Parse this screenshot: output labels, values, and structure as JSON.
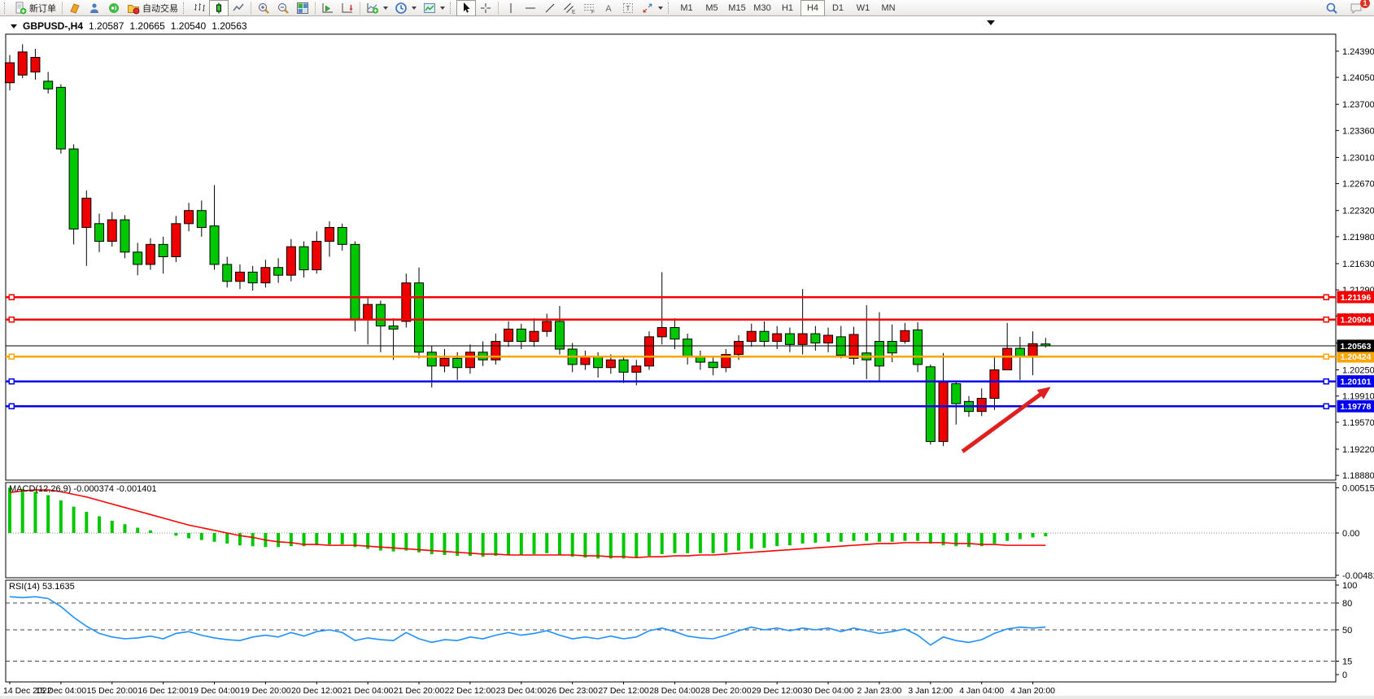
{
  "toolbar": {
    "new_order_label": "新订单",
    "auto_trading_label": "自动交易",
    "timeframes": [
      "M1",
      "M5",
      "M15",
      "M30",
      "H1",
      "H4",
      "D1",
      "W1",
      "MN"
    ],
    "active_timeframe": "H4",
    "notification_count": "1"
  },
  "header": {
    "symbol": "GBPUSD-,H4",
    "open": "1.20587",
    "high": "1.20665",
    "low": "1.20540",
    "close": "1.20563"
  },
  "chart_data": [
    {
      "type": "candlestick",
      "title": "GBPUSD-,H4",
      "ylim": [
        1.1886,
        1.2456
      ],
      "up_color": "#ee0000",
      "down_color": "#00c800",
      "wick_color": "#000000",
      "price_ticks": [
        "1.24390",
        "1.24050",
        "1.23700",
        "1.23360",
        "1.23010",
        "1.22670",
        "1.22320",
        "1.21980",
        "1.21630",
        "1.21290",
        "1.20950",
        "1.20600",
        "1.20250",
        "1.19910",
        "1.19570",
        "1.19220",
        "1.18880"
      ],
      "time_labels": [
        "14 Dec 2022",
        "15 Dec 04:00",
        "15 Dec 20:00",
        "16 Dec 12:00",
        "19 Dec 04:00",
        "19 Dec 20:00",
        "20 Dec 12:00",
        "21 Dec 04:00",
        "21 Dec 20:00",
        "22 Dec 12:00",
        "23 Dec 04:00",
        "26 Dec 23:00",
        "27 Dec 12:00",
        "28 Dec 04:00",
        "28 Dec 20:00",
        "29 Dec 12:00",
        "30 Dec 04:00",
        "2 Jan 23:00",
        "3 Jan 12:00",
        "4 Jan 04:00",
        "4 Jan 20:00"
      ],
      "hlines": [
        {
          "price": 1.21196,
          "label": "1.21196",
          "color": "#f40000"
        },
        {
          "price": 1.20904,
          "label": "1.20904",
          "color": "#f40000"
        },
        {
          "price": 1.20424,
          "label": "1.20424",
          "color": "#ffa500"
        },
        {
          "price": 1.20101,
          "label": "1.20101",
          "color": "#0000ee"
        },
        {
          "price": 1.19778,
          "label": "1.19778",
          "color": "#0000ee"
        }
      ],
      "current_price": {
        "price": 1.20563,
        "label": "1.20563",
        "color": "#000000"
      },
      "arrow": {
        "x1_index": 74.5,
        "y1_price": 1.1919,
        "x2_index": 81.4,
        "y2_price": 1.2003,
        "color": "#e01f1f"
      },
      "ohlc": [
        [
          1.2398,
          1.2434,
          1.2388,
          1.2424
        ],
        [
          1.2408,
          1.2448,
          1.2404,
          1.2438
        ],
        [
          1.2412,
          1.2442,
          1.2402,
          1.2431
        ],
        [
          1.24,
          1.2412,
          1.2384,
          1.239
        ],
        [
          1.2392,
          1.2396,
          1.2306,
          1.2312
        ],
        [
          1.2312,
          1.2318,
          1.2188,
          1.2208
        ],
        [
          1.221,
          1.2258,
          1.216,
          1.2248
        ],
        [
          1.2215,
          1.2228,
          1.2178,
          1.2192
        ],
        [
          1.2192,
          1.223,
          1.2185,
          1.222
        ],
        [
          1.222,
          1.2226,
          1.217,
          1.2178
        ],
        [
          1.2178,
          1.219,
          1.2148,
          1.2162
        ],
        [
          1.2162,
          1.2196,
          1.2155,
          1.2188
        ],
        [
          1.2188,
          1.2198,
          1.215,
          1.2172
        ],
        [
          1.2172,
          1.2225,
          1.2165,
          1.2215
        ],
        [
          1.2215,
          1.2242,
          1.2205,
          1.2232
        ],
        [
          1.2232,
          1.2245,
          1.2198,
          1.221
        ],
        [
          1.2212,
          1.2265,
          1.2155,
          1.2162
        ],
        [
          1.2162,
          1.2172,
          1.2132,
          1.214
        ],
        [
          1.214,
          1.2162,
          1.213,
          1.2152
        ],
        [
          1.2152,
          1.216,
          1.2128,
          1.2138
        ],
        [
          1.2138,
          1.2168,
          1.2132,
          1.2158
        ],
        [
          1.2158,
          1.217,
          1.2138,
          1.2148
        ],
        [
          1.2148,
          1.2195,
          1.214,
          1.2185
        ],
        [
          1.2185,
          1.2192,
          1.2145,
          1.2155
        ],
        [
          1.2155,
          1.2205,
          1.215,
          1.2192
        ],
        [
          1.2192,
          1.2218,
          1.2172,
          1.221
        ],
        [
          1.221,
          1.2215,
          1.218,
          1.2188
        ],
        [
          1.2188,
          1.2192,
          1.2075,
          1.209
        ],
        [
          1.209,
          1.2118,
          1.2058,
          1.211
        ],
        [
          1.211,
          1.2115,
          1.2048,
          1.2082
        ],
        [
          1.2082,
          1.2092,
          1.2038,
          1.2078
        ],
        [
          1.2088,
          1.215,
          1.208,
          1.2138
        ],
        [
          1.2138,
          1.2158,
          1.204,
          1.2048
        ],
        [
          1.2048,
          1.2056,
          1.2002,
          1.203
        ],
        [
          1.203,
          1.2052,
          1.2022,
          1.204
        ],
        [
          1.204,
          1.2048,
          1.2012,
          1.2028
        ],
        [
          1.2028,
          1.2058,
          1.202,
          1.2048
        ],
        [
          1.2048,
          1.2062,
          1.203,
          1.2038
        ],
        [
          1.2038,
          1.2072,
          1.2032,
          1.2062
        ],
        [
          1.2062,
          1.2088,
          1.2055,
          1.2078
        ],
        [
          1.2078,
          1.2085,
          1.2052,
          1.2062
        ],
        [
          1.2062,
          1.2092,
          1.2055,
          1.2075
        ],
        [
          1.2075,
          1.2098,
          1.2068,
          1.2088
        ],
        [
          1.2088,
          1.2108,
          1.2045,
          1.2052
        ],
        [
          1.2052,
          1.206,
          1.2022,
          1.2032
        ],
        [
          1.2032,
          1.205,
          1.2025,
          1.2042
        ],
        [
          1.2042,
          1.2048,
          1.2015,
          1.2028
        ],
        [
          1.2028,
          1.2045,
          1.202,
          1.2038
        ],
        [
          1.2038,
          1.2042,
          1.2008,
          1.2022
        ],
        [
          1.2022,
          1.2038,
          1.2005,
          1.203
        ],
        [
          1.203,
          1.2075,
          1.2025,
          1.2068
        ],
        [
          1.2068,
          1.2152,
          1.2058,
          1.208
        ],
        [
          1.208,
          1.2092,
          1.2052,
          1.2065
        ],
        [
          1.2065,
          1.2072,
          1.2032,
          1.2042
        ],
        [
          1.2042,
          1.205,
          1.2025,
          1.2035
        ],
        [
          1.2035,
          1.2042,
          1.2018,
          1.2028
        ],
        [
          1.2028,
          1.2052,
          1.2022,
          1.2045
        ],
        [
          1.2045,
          1.207,
          1.2038,
          1.2062
        ],
        [
          1.2062,
          1.2085,
          1.2055,
          1.2075
        ],
        [
          1.2075,
          1.2088,
          1.2055,
          1.2062
        ],
        [
          1.2062,
          1.2082,
          1.2052,
          1.2072
        ],
        [
          1.2072,
          1.208,
          1.2048,
          1.2058
        ],
        [
          1.2058,
          1.213,
          1.2045,
          1.2072
        ],
        [
          1.2072,
          1.2082,
          1.205,
          1.206
        ],
        [
          1.206,
          1.208,
          1.2048,
          1.207
        ],
        [
          1.2068,
          1.2082,
          1.204,
          1.2044
        ],
        [
          1.204,
          1.2081,
          1.2032,
          1.2071
        ],
        [
          1.2047,
          1.2109,
          1.2013,
          1.2038
        ],
        [
          1.2062,
          1.21,
          1.2011,
          1.203
        ],
        [
          1.2062,
          1.2084,
          1.2035,
          1.2047
        ],
        [
          1.2062,
          1.2086,
          1.2059,
          1.2076
        ],
        [
          1.2077,
          1.2087,
          1.2022,
          1.2032
        ],
        [
          1.2029,
          1.2032,
          1.1928,
          1.1932
        ],
        [
          1.1932,
          1.2047,
          1.1926,
          1.2009
        ],
        [
          1.2007,
          1.201,
          1.1954,
          1.1981
        ],
        [
          1.1984,
          1.1991,
          1.1964,
          1.1971
        ],
        [
          1.1971,
          1.2001,
          1.1965,
          1.1988
        ],
        [
          1.1988,
          1.2041,
          1.1973,
          1.2025
        ],
        [
          1.2025,
          1.2086,
          1.2025,
          1.2053
        ],
        [
          1.2053,
          1.2068,
          1.2012,
          1.2043
        ],
        [
          1.2043,
          1.2075,
          1.2018,
          1.2059
        ],
        [
          1.20587,
          1.20665,
          1.2054,
          1.20563
        ]
      ]
    },
    {
      "type": "bar",
      "title": "MACD(12,26,9)",
      "current_values_text": "-0.000374 -0.001401",
      "bar_color": "#00c800",
      "signal_color": "#ff0000",
      "axis_ticks": [
        0.00515,
        0,
        -0.004811
      ],
      "axis_tick_labels": [
        "0.00515",
        "0.00",
        "-0.004811"
      ],
      "main": [
        0.00515,
        0.005,
        0.0047,
        0.0043,
        0.0037,
        0.003,
        0.0024,
        0.0019,
        0.0014,
        0.001,
        0.0006,
        0.0003,
        0,
        -0.0003,
        -0.0006,
        -0.0008,
        -0.001,
        -0.0012,
        -0.0014,
        -0.0015,
        -0.0016,
        -0.0016,
        -0.0015,
        -0.0015,
        -0.0014,
        -0.0013,
        -0.0013,
        -0.0016,
        -0.0018,
        -0.002,
        -0.0021,
        -0.002,
        -0.0022,
        -0.0024,
        -0.0025,
        -0.0026,
        -0.0026,
        -0.0027,
        -0.0026,
        -0.0025,
        -0.0025,
        -0.0024,
        -0.0023,
        -0.0025,
        -0.0027,
        -0.0028,
        -0.0029,
        -0.0029,
        -0.0029,
        -0.0028,
        -0.0026,
        -0.0024,
        -0.0023,
        -0.0023,
        -0.0023,
        -0.0023,
        -0.0022,
        -0.002,
        -0.0018,
        -0.0017,
        -0.0015,
        -0.0014,
        -0.0012,
        -0.0011,
        -0.001,
        -0.001,
        -0.0009,
        -0.0009,
        -0.001,
        -0.001,
        -0.0009,
        -0.0009,
        -0.0012,
        -0.0014,
        -0.0015,
        -0.0016,
        -0.0015,
        -0.0012,
        -0.0009,
        -0.0007,
        -0.0005,
        -0.000374
      ],
      "signal": [
        0.0046,
        0.0048,
        0.0049,
        0.0049,
        0.0047,
        0.0044,
        0.0041,
        0.0037,
        0.0033,
        0.0029,
        0.0025,
        0.0021,
        0.0017,
        0.0013,
        0.0009,
        0.0006,
        0.0003,
        0,
        -0.0003,
        -0.0005,
        -0.0008,
        -0.001,
        -0.0011,
        -0.0013,
        -0.0013,
        -0.0014,
        -0.0014,
        -0.0014,
        -0.0015,
        -0.0016,
        -0.0017,
        -0.0018,
        -0.0019,
        -0.002,
        -0.0021,
        -0.0022,
        -0.0023,
        -0.0024,
        -0.0024,
        -0.0025,
        -0.0025,
        -0.0025,
        -0.0025,
        -0.0025,
        -0.0025,
        -0.0026,
        -0.0026,
        -0.0027,
        -0.0027,
        -0.0028,
        -0.0027,
        -0.0027,
        -0.0026,
        -0.0026,
        -0.0025,
        -0.0025,
        -0.0024,
        -0.0023,
        -0.0022,
        -0.0021,
        -0.002,
        -0.0019,
        -0.0018,
        -0.0017,
        -0.0016,
        -0.0015,
        -0.0014,
        -0.0013,
        -0.0012,
        -0.0012,
        -0.0011,
        -0.0011,
        -0.0011,
        -0.0011,
        -0.0012,
        -0.0012,
        -0.0013,
        -0.0013,
        -0.0014,
        -0.0014,
        -0.0014,
        -0.001401
      ]
    },
    {
      "type": "line",
      "title": "RSI(14)",
      "current_value_text": "53.1635",
      "line_color": "#1e90ff",
      "levels": [
        80,
        50,
        15
      ],
      "axis_ticks": [
        100,
        80,
        50,
        15,
        0
      ],
      "ylim": [
        0,
        100
      ],
      "values": [
        87,
        86,
        87,
        85,
        76,
        64,
        54,
        46,
        42,
        40,
        41,
        43,
        40,
        46,
        48,
        44,
        41,
        39,
        38,
        42,
        44,
        42,
        47,
        43,
        48,
        50,
        47,
        38,
        41,
        39,
        38,
        47,
        40,
        36,
        39,
        38,
        42,
        40,
        44,
        47,
        44,
        46,
        49,
        44,
        40,
        42,
        40,
        43,
        40,
        42,
        49,
        52,
        48,
        43,
        41,
        40,
        44,
        49,
        53,
        50,
        52,
        49,
        52,
        50,
        52,
        48,
        52,
        49,
        46,
        48,
        51,
        44,
        33,
        42,
        38,
        36,
        39,
        46,
        51,
        53,
        52,
        53.16
      ]
    }
  ]
}
